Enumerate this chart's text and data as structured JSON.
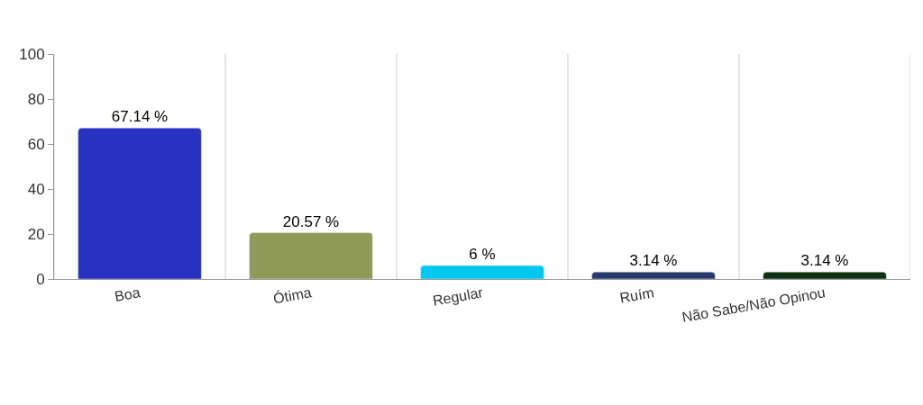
{
  "chart_data": {
    "type": "bar",
    "categories": [
      "Boa",
      "Ótima",
      "Regular",
      "Ruím",
      "Não Sabe/Não Opinou"
    ],
    "values": [
      67.14,
      20.57,
      6,
      3.14,
      3.14
    ],
    "value_labels": [
      "67.14 %",
      "20.57 %",
      "6 %",
      "3.14 %",
      "3.14 %"
    ],
    "colors": [
      "#2832c2",
      "#8f9a58",
      "#00c8f0",
      "#283a6e",
      "#0f3010"
    ],
    "ylim": [
      0,
      100
    ],
    "yticks": [
      0,
      20,
      40,
      60,
      80,
      100
    ],
    "grid": "x",
    "legend": false
  }
}
